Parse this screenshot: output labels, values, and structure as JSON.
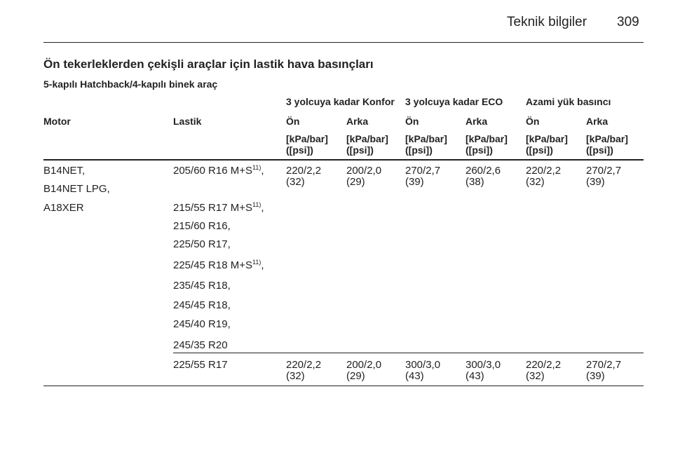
{
  "header": {
    "section": "Teknik bilgiler",
    "page": "309"
  },
  "title": "Ön tekerleklerden çekişli araçlar için lastik hava basınçları",
  "subtitle": "5-kapılı Hatchback/4-kapılı binek araç",
  "table": {
    "groups": [
      "3 yolcuya kadar Konfor",
      "3 yolcuya kadar ECO",
      "Azami yük basıncı"
    ],
    "columns": [
      "Motor",
      "Lastik",
      "Ön",
      "Arka",
      "Ön",
      "Arka",
      "Ön",
      "Arka"
    ],
    "units": [
      {
        "line1": "[kPa/bar]",
        "line2": "([psi])"
      },
      {
        "line1": "[kPa/bar]",
        "line2": "([psi])"
      },
      {
        "line1": "[kPa/bar]",
        "line2": "([psi])"
      },
      {
        "line1": "[kPa/bar]",
        "line2": "([psi])"
      },
      {
        "line1": "[kPa/bar]",
        "line2": "([psi])"
      },
      {
        "line1": "[kPa/bar]",
        "line2": "([psi])"
      }
    ],
    "rows": [
      {
        "motor": [
          "B14NET,",
          "B14NET LPG,",
          "A18XER"
        ],
        "tires": [
          {
            "text": "205/60 R16 M+S",
            "sup": "11)",
            "after": ","
          },
          {
            "text": "215/55 R17 M+S",
            "sup": "11)",
            "after": ","
          },
          {
            "text": "215/60 R16,"
          },
          {
            "text": "225/50 R17,"
          },
          {
            "text": "225/45 R18 M+S",
            "sup": "11)",
            "after": ","
          },
          {
            "text": "235/45 R18,"
          },
          {
            "text": "245/45 R18,"
          },
          {
            "text": "245/40 R19,"
          },
          {
            "text": "245/35 R20"
          }
        ],
        "values": [
          {
            "pressure": "220/2,2",
            "psi": "(32)"
          },
          {
            "pressure": "200/2,0",
            "psi": "(29)"
          },
          {
            "pressure": "270/2,7",
            "psi": "(39)"
          },
          {
            "pressure": "260/2,6",
            "psi": "(38)"
          },
          {
            "pressure": "220/2,2",
            "psi": "(32)"
          },
          {
            "pressure": "270/2,7",
            "psi": "(39)"
          }
        ]
      },
      {
        "motor": [],
        "tires": [
          {
            "text": "225/55 R17"
          }
        ],
        "values": [
          {
            "pressure": "220/2,2",
            "psi": "(32)"
          },
          {
            "pressure": "200/2,0",
            "psi": "(29)"
          },
          {
            "pressure": "300/3,0",
            "psi": "(43)"
          },
          {
            "pressure": "300/3,0",
            "psi": "(43)"
          },
          {
            "pressure": "220/2,2",
            "psi": "(32)"
          },
          {
            "pressure": "270/2,7",
            "psi": "(39)"
          }
        ]
      }
    ]
  }
}
